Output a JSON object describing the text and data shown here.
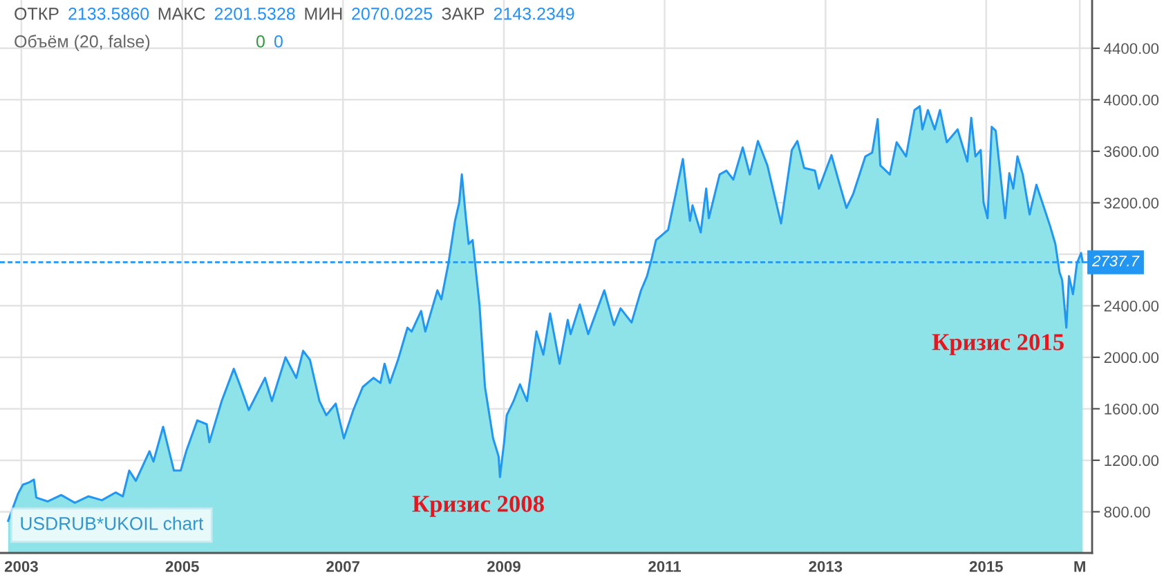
{
  "chart_data": {
    "type": "area",
    "x": [
      "2002-11-02",
      "2002-12-17",
      "2003-01-08",
      "2003-02-07",
      "2003-02-27",
      "2003-03-10",
      "2003-05-01",
      "2003-07-01",
      "2003-09-01",
      "2003-11-01",
      "2004-01-02",
      "2004-03-04",
      "2004-04-06",
      "2004-05-05",
      "2004-06-04",
      "2004-08-05",
      "2004-08-23",
      "2004-10-06",
      "2004-11-24",
      "2004-12-25",
      "2005-01-19",
      "2005-03-10",
      "2005-04-22",
      "2005-05-04",
      "2005-06-29",
      "2005-08-23",
      "2005-09-23",
      "2005-10-30",
      "2006-01-12",
      "2006-02-12",
      "2006-04-15",
      "2006-06-03",
      "2006-07-04",
      "2006-08-04",
      "2006-09-16",
      "2006-10-17",
      "2006-11-29",
      "2007-01-05",
      "2007-02-17",
      "2007-04-01",
      "2007-05-20",
      "2007-06-20",
      "2007-07-09",
      "2007-08-02",
      "2007-09-08",
      "2007-10-21",
      "2007-11-09",
      "2007-12-22",
      "2008-01-10",
      "2008-03-05",
      "2008-03-23",
      "2008-04-24",
      "2008-05-24",
      "2008-06-12",
      "2008-06-24",
      "2008-07-12",
      "2008-07-25",
      "2008-08-12",
      "2008-09-12",
      "2008-10-07",
      "2008-11-13",
      "2008-12-08",
      "2008-12-14",
      "2009-01-02",
      "2009-01-14",
      "2009-02-14",
      "2009-03-15",
      "2009-04-16",
      "2009-05-29",
      "2009-06-29",
      "2009-07-30",
      "2009-09-11",
      "2009-10-18",
      "2009-10-31",
      "2009-12-12",
      "2010-01-19",
      "2010-04-02",
      "2010-05-16",
      "2010-06-15",
      "2010-08-04",
      "2010-09-16",
      "2010-10-13",
      "2010-11-04",
      "2010-11-23",
      "2011-01-17",
      "2011-02-17",
      "2011-03-25",
      "2011-04-26",
      "2011-05-08",
      "2011-06-14",
      "2011-07-09",
      "2011-07-21",
      "2011-09-08",
      "2011-10-09",
      "2011-11-09",
      "2011-12-22",
      "2012-01-23",
      "2012-02-29",
      "2012-04-12",
      "2012-06-13",
      "2012-08-01",
      "2012-08-26",
      "2012-09-26",
      "2012-11-14",
      "2012-12-02",
      "2013-01-28",
      "2013-02-28",
      "2013-04-06",
      "2013-05-07",
      "2013-07-01",
      "2013-08-01",
      "2013-08-26",
      "2013-09-07",
      "2013-10-20",
      "2013-11-20",
      "2014-01-02",
      "2014-02-09",
      "2014-03-05",
      "2014-03-17",
      "2014-04-11",
      "2014-05-12",
      "2014-06-05",
      "2014-07-06",
      "2014-08-24",
      "2014-10-07",
      "2014-10-25",
      "2014-11-13",
      "2014-12-07",
      "2014-12-20",
      "2015-01-07",
      "2015-01-26",
      "2015-02-13",
      "2015-03-28",
      "2015-04-16",
      "2015-05-04",
      "2015-05-23",
      "2015-06-16",
      "2015-07-17",
      "2015-08-17",
      "2015-09-17",
      "2015-10-18",
      "2015-11-11",
      "2015-11-30",
      "2015-12-12",
      "2015-12-31",
      "2016-01-12",
      "2016-01-30",
      "2016-02-17",
      "2016-03-07",
      "2016-03-14"
    ],
    "series": [
      {
        "color": "#8de3e8",
        "values": [
          730,
          940,
          1010,
          1030,
          1050,
          910,
          880,
          930,
          870,
          920,
          890,
          950,
          920,
          1120,
          1040,
          1270,
          1190,
          1460,
          1120,
          1120,
          1270,
          1510,
          1480,
          1340,
          1660,
          1910,
          1770,
          1590,
          1840,
          1660,
          2000,
          1840,
          2050,
          1980,
          1660,
          1550,
          1640,
          1370,
          1590,
          1770,
          1840,
          1800,
          1950,
          1800,
          1980,
          2230,
          2200,
          2360,
          2200,
          2520,
          2450,
          2730,
          3060,
          3200,
          3420,
          3090,
          2880,
          2910,
          2410,
          1770,
          1370,
          1230,
          1070,
          1340,
          1550,
          1660,
          1790,
          1660,
          2200,
          2020,
          2340,
          1950,
          2290,
          2180,
          2410,
          2180,
          2520,
          2250,
          2380,
          2270,
          2520,
          2630,
          2770,
          2910,
          2990,
          3240,
          3540,
          3060,
          3180,
          2970,
          3310,
          3080,
          3420,
          3450,
          3380,
          3630,
          3420,
          3680,
          3490,
          3040,
          3610,
          3680,
          3470,
          3450,
          3310,
          3570,
          3380,
          3160,
          3270,
          3560,
          3590,
          3850,
          3490,
          3420,
          3670,
          3560,
          3920,
          3950,
          3770,
          3920,
          3770,
          3920,
          3670,
          3770,
          3520,
          3860,
          3560,
          3610,
          3200,
          3080,
          3790,
          3760,
          3080,
          3430,
          3310,
          3560,
          3420,
          3110,
          3340,
          3180,
          3020,
          2880,
          2660,
          2600,
          2230,
          2630,
          2490,
          2730,
          2810,
          2740
        ]
      }
    ],
    "xlim": [
      "2002-09-26",
      "2016-04-26"
    ],
    "ylim": [
      480,
      4775
    ],
    "xticks": [
      {
        "value": "2003-01-01",
        "label": "2003"
      },
      {
        "value": "2005-01-01",
        "label": "2005"
      },
      {
        "value": "2007-01-01",
        "label": "2007"
      },
      {
        "value": "2009-01-01",
        "label": "2009"
      },
      {
        "value": "2011-01-01",
        "label": "2011"
      },
      {
        "value": "2013-01-01",
        "label": "2013"
      },
      {
        "value": "2015-01-01",
        "label": "2015"
      },
      {
        "value": "2016-03-01",
        "label": "M"
      }
    ],
    "yticks": [
      {
        "value": 800,
        "label": "800.00"
      },
      {
        "value": 1200,
        "label": "1200.00"
      },
      {
        "value": 1600,
        "label": "1600.00"
      },
      {
        "value": 2000,
        "label": "2000.00"
      },
      {
        "value": 2400,
        "label": "2400.00"
      },
      {
        "value": 2800,
        "label": null
      },
      {
        "value": 3200,
        "label": "3200.00"
      },
      {
        "value": 3600,
        "label": "3600.00"
      },
      {
        "value": 4000,
        "label": "4000.00"
      },
      {
        "value": 4400,
        "label": "4400.00"
      }
    ],
    "grid": true,
    "ref_lines": [
      {
        "axis": "y",
        "value": 2737.7,
        "label": "2737.7",
        "color": "#2196f3",
        "line_style": "dashed"
      }
    ],
    "annotations": [
      "ОТКР 2133.5860 МАКС 2201.5328 МИН 2070.0225 ЗАКР 2143.2349",
      "Объём (20, false)",
      "0 0",
      "Кризис 2008",
      "Кризис 2015",
      "USDRUB*UKOIL chart"
    ]
  }
}
